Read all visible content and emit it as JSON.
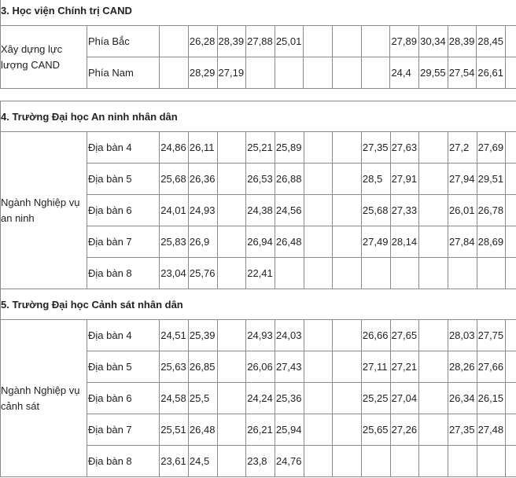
{
  "sections": [
    {
      "title": "3. Học viện Chính trị CAND",
      "groups": [
        {
          "label": "Xây dựng lực lượng CAND",
          "rows": [
            {
              "name": "Phía Bắc",
              "cells": [
                "",
                "26,28",
                "28,39",
                "27,88",
                "25,01",
                "",
                "",
                "",
                "27,89",
                "30,34",
                "28,39",
                "28,45",
                ""
              ]
            },
            {
              "name": "Phía Nam",
              "cells": [
                "",
                "28,29",
                "27,19",
                "",
                "",
                "",
                "",
                "",
                "24,4",
                "29,55",
                "27,54",
                "26,61",
                ""
              ]
            }
          ]
        }
      ]
    },
    {
      "title": "4. Trường Đại học An ninh nhân dân",
      "groups": [
        {
          "label": "Ngành Nghiệp vụ an ninh",
          "rows": [
            {
              "name": "Địa bàn 4",
              "cells": [
                "24,86",
                "26,11",
                "",
                "25,21",
                "25,89",
                "",
                "",
                "27,35",
                "27,63",
                "",
                "27,2",
                "27,69",
                ""
              ]
            },
            {
              "name": "Địa bàn 5",
              "cells": [
                "25,68",
                "26,36",
                "",
                "26,53",
                "26,88",
                "",
                "",
                "28,5",
                "27,91",
                "",
                "27,94",
                "29,51",
                ""
              ]
            },
            {
              "name": "Địa bàn 6",
              "cells": [
                "24,01",
                "24,93",
                "",
                "24,38",
                "24,56",
                "",
                "",
                "25,68",
                "27,33",
                "",
                "26,01",
                "26,78",
                ""
              ]
            },
            {
              "name": "Địa bàn 7",
              "cells": [
                "25,83",
                "26,9",
                "",
                "26,94",
                "26,48",
                "",
                "",
                "27,49",
                "28,14",
                "",
                "27,84",
                "28,69",
                ""
              ]
            },
            {
              "name": "Địa bàn 8",
              "cells": [
                "23,04",
                "25,76",
                "",
                "22,41",
                "",
                "",
                "",
                "",
                "",
                "",
                "",
                "",
                ""
              ]
            }
          ]
        }
      ]
    },
    {
      "title": "5. Trường Đại học Cảnh sát nhân dân",
      "groups": [
        {
          "label": "Ngành Nghiệp vụ cảnh sát",
          "rows": [
            {
              "name": "Địa bàn 4",
              "cells": [
                "24,51",
                "25,39",
                "",
                "24,93",
                "24,03",
                "",
                "",
                "26,66",
                "27,65",
                "",
                "28,03",
                "27,75",
                ""
              ]
            },
            {
              "name": "Địa bàn 5",
              "cells": [
                "25,63",
                "26,85",
                "",
                "26,06",
                "27,43",
                "",
                "",
                "27,11",
                "27,21",
                "",
                "28,26",
                "27,66",
                ""
              ]
            },
            {
              "name": "Địa bàn 6",
              "cells": [
                "24,58",
                "25,5",
                "",
                "24,24",
                "25,36",
                "",
                "",
                "25,25",
                "27,04",
                "",
                "26,34",
                "26,15",
                ""
              ]
            },
            {
              "name": "Địa bàn 7",
              "cells": [
                "25,51",
                "26,48",
                "",
                "26,21",
                "25,94",
                "",
                "",
                "25,65",
                "27,26",
                "",
                "27,35",
                "27,48",
                ""
              ]
            },
            {
              "name": "Địa bàn 8",
              "cells": [
                "23,61",
                "24,5",
                "",
                "23,8",
                "24,76",
                "",
                "",
                "",
                "",
                "",
                "",
                "",
                ""
              ]
            }
          ]
        }
      ]
    }
  ]
}
